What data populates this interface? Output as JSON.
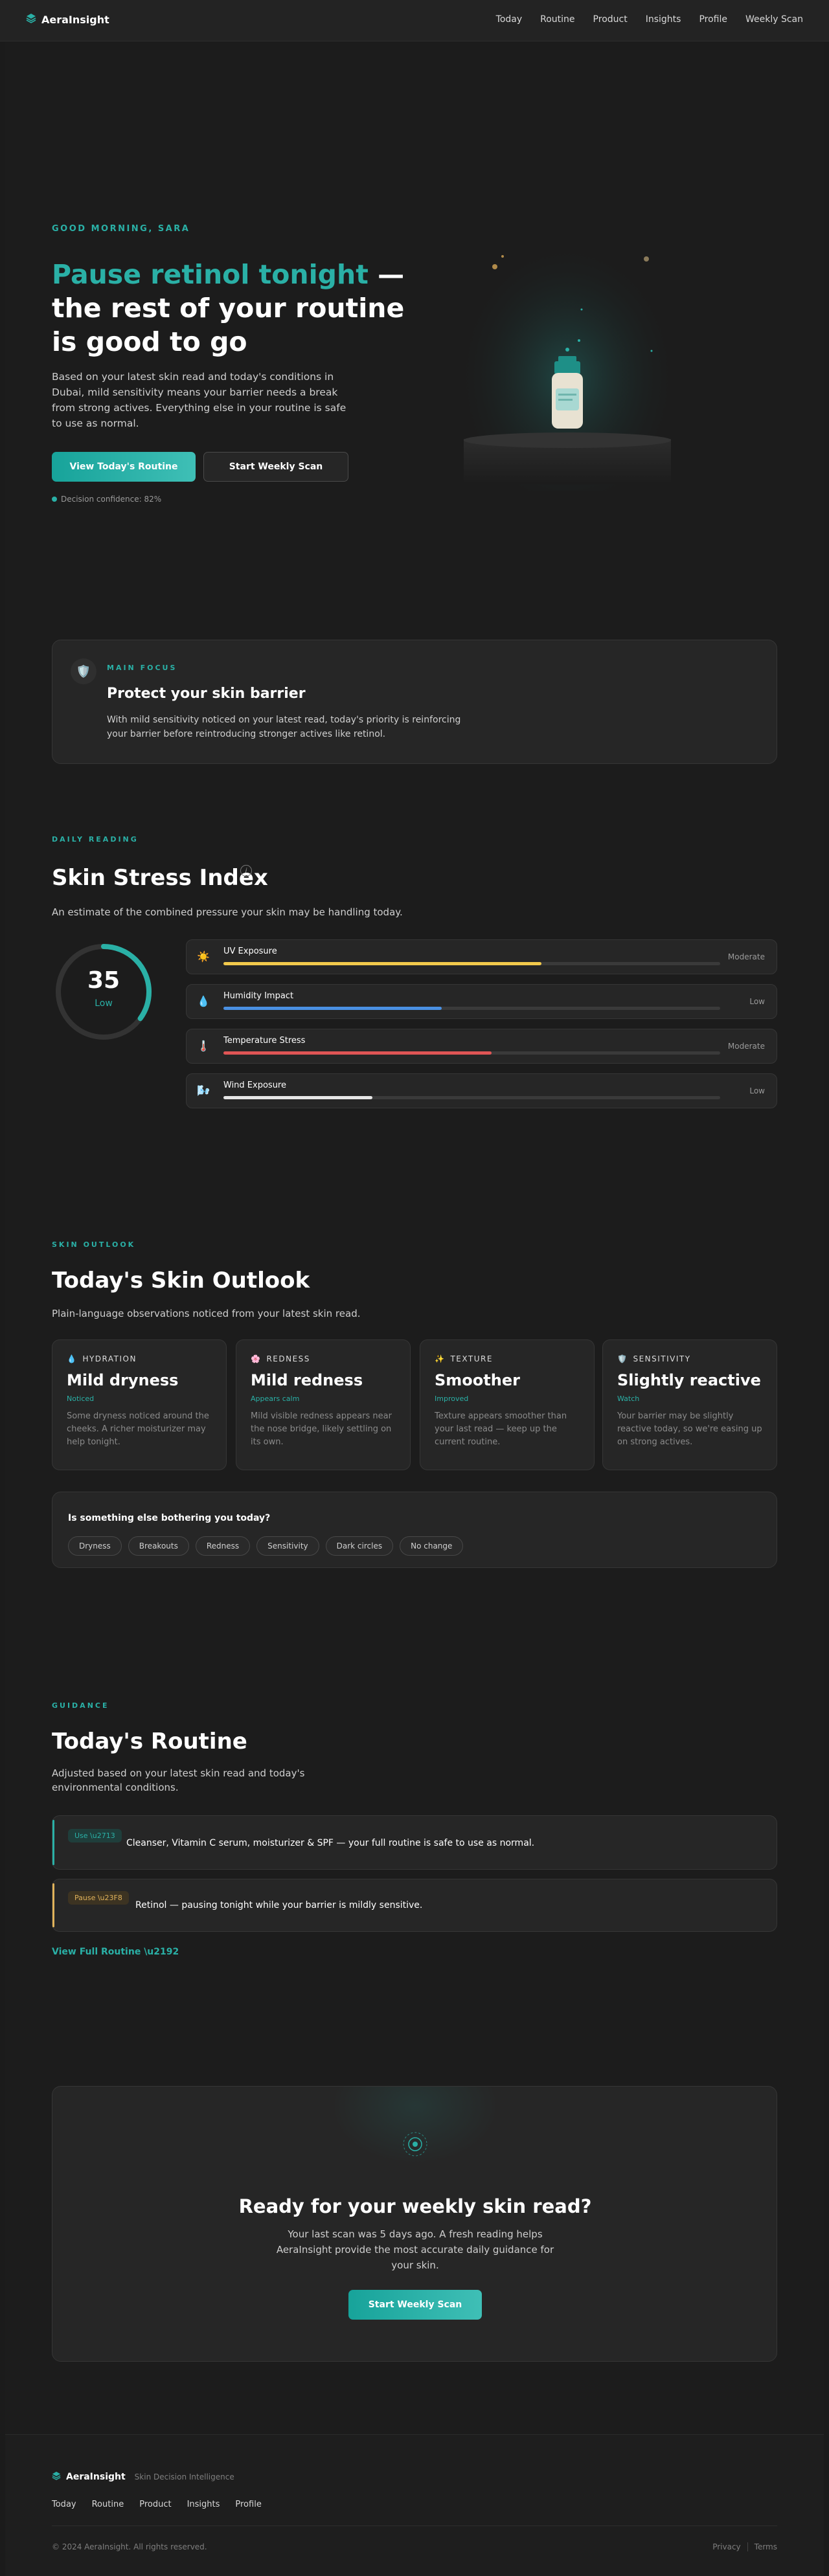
{
  "nav": {
    "brand": "AeraInsight",
    "links": [
      "Today",
      "Routine",
      "Product",
      "Insights",
      "Profile",
      "Weekly Scan"
    ]
  },
  "hero": {
    "greeting": "GOOD MORNING, SARA",
    "title_accent": "Pause retinol tonight",
    "title_rest": " — the rest of your routine is good to go",
    "description": "Based on your latest skin read and today's conditions in Dubai, mild sensitivity means your barrier needs a break from strong actives. Everything else in your routine is safe to use as normal.",
    "primary_button": "View Today's Routine",
    "secondary_button": "Start Weekly Scan",
    "confidence": "Decision confidence: 82%"
  },
  "focus": {
    "eyebrow": "MAIN FOCUS",
    "icon": "shield-icon",
    "title": "Protect your skin barrier",
    "text": "With mild sensitivity noticed on your latest read, today's priority is reinforcing your barrier before reintroducing stronger actives like retinol."
  },
  "stress": {
    "eyebrow": "DAILY READING",
    "title": "Skin Stress Index",
    "info": "i",
    "subtitle": "An estimate of the combined pressure your skin may be handling today.",
    "score": "35",
    "score_value": 35,
    "score_max": 100,
    "level": "Low",
    "factors": [
      {
        "label": "UV Exposure",
        "level": "Moderate",
        "fill": 0.64,
        "color": "#f2c94c",
        "icon": "sun-icon",
        "glyph": "☀️"
      },
      {
        "label": "Humidity Impact",
        "level": "Low",
        "fill": 0.44,
        "color": "#4a90e2",
        "icon": "droplet-icon",
        "glyph": "💧"
      },
      {
        "label": "Temperature Stress",
        "level": "Moderate",
        "fill": 0.54,
        "color": "#e05555",
        "icon": "thermometer-icon",
        "glyph": "🌡️"
      },
      {
        "label": "Wind Exposure",
        "level": "Low",
        "fill": 0.3,
        "color": "#e6e6e6",
        "icon": "wind-icon",
        "glyph": "🌬️"
      }
    ]
  },
  "outlook": {
    "eyebrow": "SKIN OUTLOOK",
    "title": "Today's Skin Outlook",
    "subtitle": "Plain-language observations noticed from your latest skin read.",
    "cards": [
      {
        "category": "HYDRATION",
        "icon": "droplet-icon",
        "glyph": "💧",
        "value": "Mild dryness",
        "status": "Noticed",
        "desc": "Some dryness noticed around the cheeks. A richer moisturizer may help tonight."
      },
      {
        "category": "REDNESS",
        "icon": "flower-icon",
        "glyph": "🌸",
        "value": "Mild redness",
        "status": "Appears calm",
        "desc": "Mild visible redness appears near the nose bridge, likely settling on its own."
      },
      {
        "category": "TEXTURE",
        "icon": "sparkle-icon",
        "glyph": "✨",
        "value": "Smoother",
        "status": "Improved",
        "desc": "Texture appears smoother than your last read — keep up the current routine."
      },
      {
        "category": "SENSITIVITY",
        "icon": "shield-icon",
        "glyph": "🛡️",
        "value": "Slightly reactive",
        "status": "Watch",
        "desc": "Your barrier may be slightly reactive today, so we're easing up on strong actives."
      }
    ],
    "bother_question": "Is something else bothering you today?",
    "chips": [
      "Dryness",
      "Breakouts",
      "Redness",
      "Sensitivity",
      "Dark circles",
      "No change"
    ]
  },
  "routine": {
    "eyebrow": "GUIDANCE",
    "title": "Today's Routine",
    "subtitle": "Adjusted based on your latest skin read and today's environmental conditions.",
    "use_badge": "Use \\u2713",
    "use_text": "Cleanser, Vitamin C serum, moisturizer & SPF — your full routine is safe to use as normal.",
    "pause_badge": "Pause \\u23F8",
    "pause_text": "Retinol — pausing tonight while your barrier is mildly sensitive.",
    "link": "View Full Routine \\u2192",
    "use_color": "#2ab0a6",
    "pause_color": "#e0b25a"
  },
  "cta": {
    "title": "Ready for your weekly skin read?",
    "text": "Your last scan was 5 days ago. A fresh reading helps AeraInsight provide the most accurate daily guidance for your skin.",
    "button": "Start Weekly Scan"
  },
  "footer": {
    "brand": "AeraInsight",
    "tagline": "Skin Decision Intelligence",
    "links": [
      "Today",
      "Routine",
      "Product",
      "Insights",
      "Profile"
    ],
    "copyright": "© 2024 AeraInsight. All rights reserved.",
    "privacy": "Privacy",
    "terms": "Terms"
  },
  "colors": {
    "accent": "#2ab0a6",
    "background": "#1c1c1c",
    "card": "#262626"
  }
}
